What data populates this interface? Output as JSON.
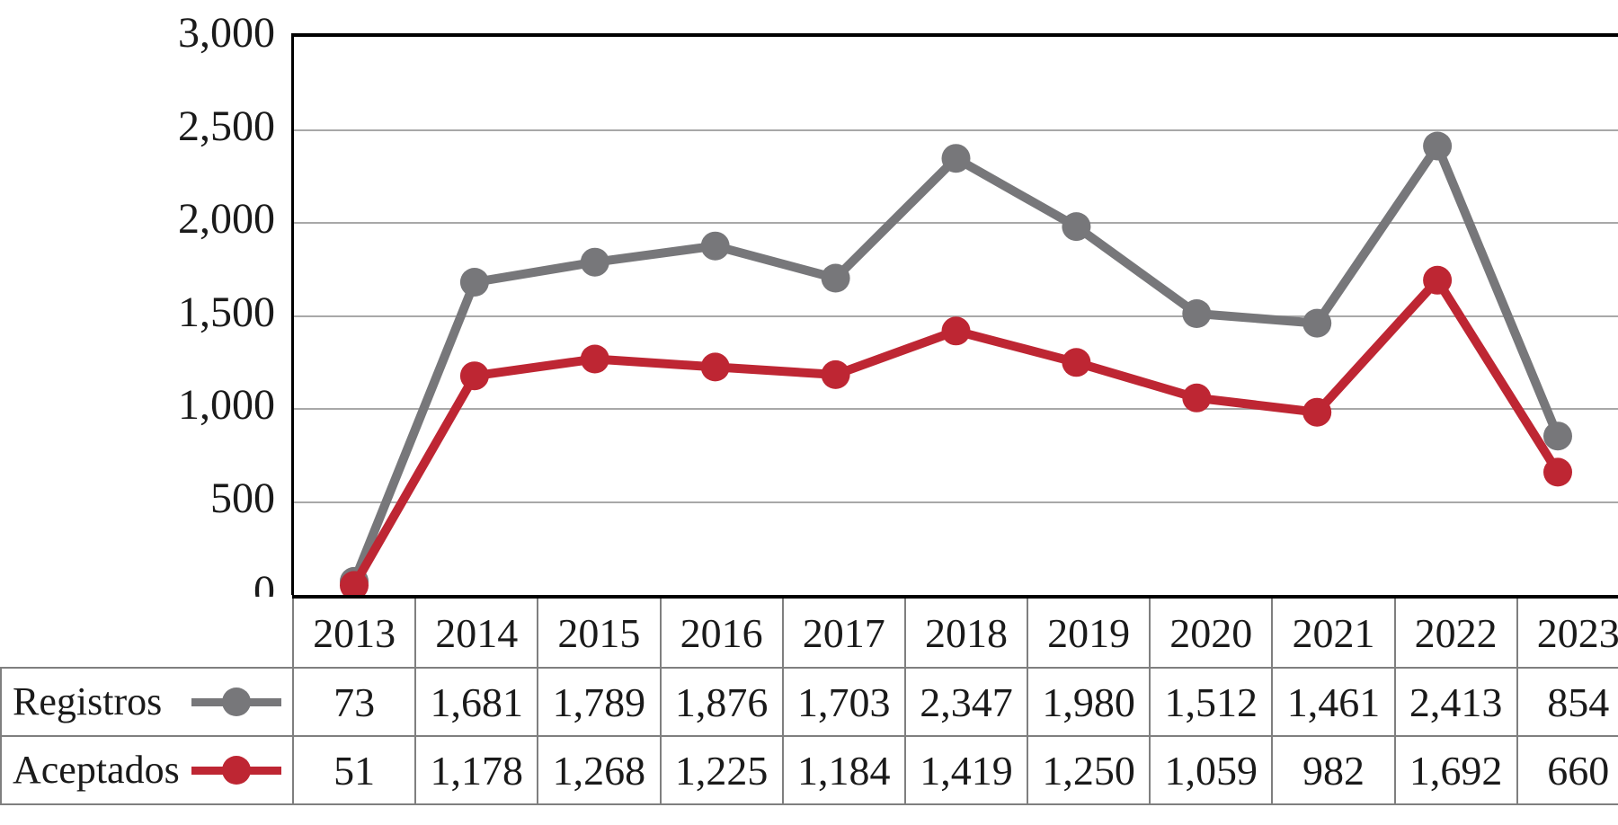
{
  "chart_data": {
    "type": "line",
    "categories": [
      "2013",
      "2014",
      "2015",
      "2016",
      "2017",
      "2018",
      "2019",
      "2020",
      "2021",
      "2022",
      "2023"
    ],
    "series": [
      {
        "name": "Registros",
        "color": "#77777a",
        "values": [
          73,
          1681,
          1789,
          1876,
          1703,
          2347,
          1980,
          1512,
          1461,
          2413,
          854
        ]
      },
      {
        "name": "Aceptados",
        "color": "#be2633",
        "values": [
          51,
          1178,
          1268,
          1225,
          1184,
          1419,
          1250,
          1059,
          982,
          1692,
          660
        ]
      }
    ],
    "title": "",
    "xlabel": "",
    "ylabel": "",
    "ylim": [
      0,
      3000
    ],
    "ytick_interval": 500,
    "ytick_labels": [
      "0",
      "500",
      "1,000",
      "1,500",
      "2,000",
      "2,500",
      "3,000"
    ],
    "grid": true,
    "legend_position": "table-left",
    "marker": "circle"
  },
  "colors": {
    "registros_line": "#77777a",
    "aceptados_line": "#be2633",
    "gridline": "#a8a8a8",
    "table_border": "#7f7f7f",
    "axis": "#000000",
    "text": "#1a1a1a"
  }
}
